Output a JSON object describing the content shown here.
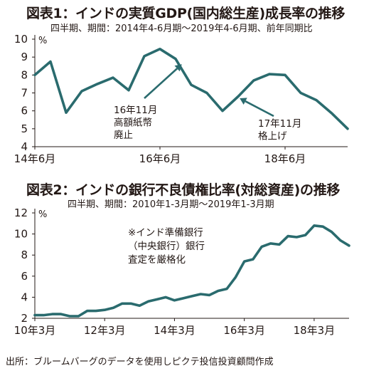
{
  "chart_data": [
    {
      "type": "line",
      "title": "図表1：インドの実質GDP(国内総生産)成長率の推移",
      "subtitle": "四半期、期間：2014年4-6月期～2019年4-6月期、前年同期比",
      "ylabel": "%",
      "ylim": [
        4,
        10
      ],
      "yticks": [
        4,
        5,
        6,
        7,
        8,
        9,
        10
      ],
      "xlim": [
        0,
        20
      ],
      "xticks": [
        {
          "x": 0,
          "label": "14年6月"
        },
        {
          "x": 8,
          "label": "16年6月"
        },
        {
          "x": 16,
          "label": "18年6月"
        }
      ],
      "color": "#2a6b6e",
      "x": [
        0,
        1,
        2,
        3,
        4,
        5,
        6,
        7,
        8,
        9,
        10,
        11,
        12,
        13,
        14,
        15,
        16,
        17,
        18,
        19,
        20
      ],
      "values": [
        8.0,
        8.75,
        5.9,
        7.1,
        7.5,
        7.85,
        7.15,
        9.05,
        9.45,
        8.9,
        7.45,
        7.0,
        6.0,
        6.8,
        7.7,
        8.05,
        8.0,
        7.0,
        6.6,
        5.85,
        5.0
      ],
      "annotations": [
        {
          "lines": [
            "16年11月",
            "高額紙幣",
            "廃止"
          ],
          "target_x": 9.4,
          "target_y": 8.6
        },
        {
          "lines": [
            "17年11月",
            "格上げ"
          ],
          "target_x": 13.1,
          "target_y": 6.7
        }
      ],
      "grid": false
    },
    {
      "type": "line",
      "title": "図表2：インドの銀行不良債権比率(対総資産)の推移",
      "subtitle": "四半期、期間：2010年1-3月期～2019年1-3月期",
      "ylabel": "%",
      "ylim": [
        2,
        12
      ],
      "yticks": [
        2,
        4,
        6,
        8,
        10,
        12
      ],
      "xlim": [
        0,
        36
      ],
      "xticks": [
        {
          "x": 0,
          "label": "10年3月"
        },
        {
          "x": 8,
          "label": "12年3月"
        },
        {
          "x": 16,
          "label": "14年3月"
        },
        {
          "x": 24,
          "label": "16年3月"
        },
        {
          "x": 32,
          "label": "18年3月"
        }
      ],
      "color": "#2a6b6e",
      "x": [
        0,
        1,
        2,
        3,
        4,
        5,
        6,
        7,
        8,
        9,
        10,
        11,
        12,
        13,
        14,
        15,
        16,
        17,
        18,
        19,
        20,
        21,
        22,
        23,
        24,
        25,
        26,
        27,
        28,
        29,
        30,
        31,
        32,
        33,
        34,
        35,
        36
      ],
      "values": [
        2.3,
        2.3,
        2.4,
        2.4,
        2.2,
        2.2,
        2.7,
        2.7,
        2.8,
        3.0,
        3.4,
        3.4,
        3.2,
        3.6,
        3.8,
        4.0,
        3.7,
        3.9,
        4.1,
        4.3,
        4.2,
        4.6,
        4.8,
        5.9,
        7.4,
        7.6,
        8.8,
        9.1,
        9.0,
        9.8,
        9.7,
        9.9,
        10.8,
        10.7,
        10.2,
        9.4,
        8.9
      ],
      "annotations": [
        {
          "lines": [
            "※インド準備銀行",
            "（中央銀行）銀行",
            "査定を厳格化"
          ]
        }
      ],
      "grid": false
    }
  ],
  "source": "出所：ブルームバーグのデータを使用しピクテ投信投資顧問作成"
}
